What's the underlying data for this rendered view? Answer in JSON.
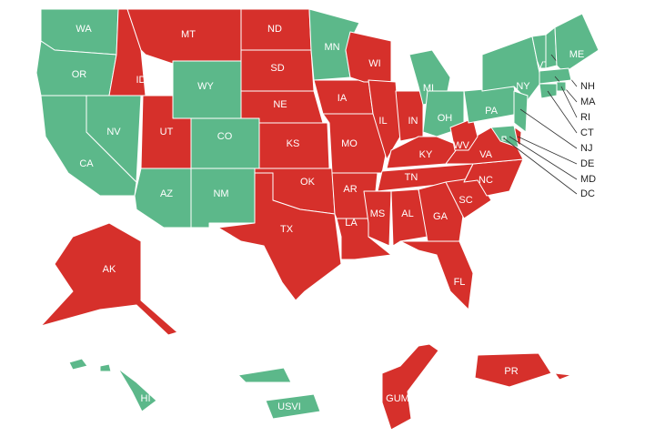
{
  "regions": [
    {
      "label": "WA",
      "color": "#5cb88a"
    },
    {
      "label": "OR",
      "color": "#5cb88a"
    },
    {
      "label": "CA",
      "color": "#5cb88a"
    },
    {
      "label": "NV",
      "color": "#5cb88a"
    },
    {
      "label": "ID",
      "color": "#d6302b"
    },
    {
      "label": "MT",
      "color": "#d6302b"
    },
    {
      "label": "WY",
      "color": "#5cb88a"
    },
    {
      "label": "UT",
      "color": "#d6302b"
    },
    {
      "label": "CO",
      "color": "#5cb88a"
    },
    {
      "label": "AZ",
      "color": "#5cb88a"
    },
    {
      "label": "NM",
      "color": "#5cb88a"
    },
    {
      "label": "ND",
      "color": "#d6302b"
    },
    {
      "label": "SD",
      "color": "#d6302b"
    },
    {
      "label": "NE",
      "color": "#d6302b"
    },
    {
      "label": "KS",
      "color": "#d6302b"
    },
    {
      "label": "OK",
      "color": "#d6302b"
    },
    {
      "label": "TX",
      "color": "#d6302b"
    },
    {
      "label": "MN",
      "color": "#5cb88a"
    },
    {
      "label": "IA",
      "color": "#d6302b"
    },
    {
      "label": "MO",
      "color": "#d6302b"
    },
    {
      "label": "AR",
      "color": "#d6302b"
    },
    {
      "label": "LA",
      "color": "#d6302b"
    },
    {
      "label": "WI",
      "color": "#d6302b"
    },
    {
      "label": "IL",
      "color": "#d6302b"
    },
    {
      "label": "IN",
      "color": "#d6302b"
    },
    {
      "label": "MI",
      "color": "#5cb88a"
    },
    {
      "label": "OH",
      "color": "#5cb88a"
    },
    {
      "label": "KY",
      "color": "#d6302b"
    },
    {
      "label": "TN",
      "color": "#d6302b"
    },
    {
      "label": "MS",
      "color": "#d6302b"
    },
    {
      "label": "AL",
      "color": "#d6302b"
    },
    {
      "label": "GA",
      "color": "#d6302b"
    },
    {
      "label": "FL",
      "color": "#d6302b"
    },
    {
      "label": "SC",
      "color": "#d6302b"
    },
    {
      "label": "NC",
      "color": "#d6302b"
    },
    {
      "label": "VA",
      "color": "#d6302b"
    },
    {
      "label": "WV",
      "color": "#d6302b"
    },
    {
      "label": "PA",
      "color": "#5cb88a"
    },
    {
      "label": "NY",
      "color": "#5cb88a"
    },
    {
      "label": "VT",
      "color": "#5cb88a"
    },
    {
      "label": "NH",
      "color": "#5cb88a"
    },
    {
      "label": "ME",
      "color": "#5cb88a"
    },
    {
      "label": "MA",
      "color": "#5cb88a"
    },
    {
      "label": "RI",
      "color": "#5cb88a"
    },
    {
      "label": "CT",
      "color": "#5cb88a"
    },
    {
      "label": "NJ",
      "color": "#5cb88a"
    },
    {
      "label": "DE",
      "color": "#d6302b"
    },
    {
      "label": "MD",
      "color": "#5cb88a"
    },
    {
      "label": "DC",
      "color": "#5cb88a"
    },
    {
      "label": "AK",
      "color": "#d6302b"
    },
    {
      "label": "HI",
      "color": "#5cb88a"
    },
    {
      "label": "USVI",
      "color": "#5cb88a"
    },
    {
      "label": "GUM",
      "color": "#d6302b"
    },
    {
      "label": "PR",
      "color": "#d6302b"
    }
  ]
}
